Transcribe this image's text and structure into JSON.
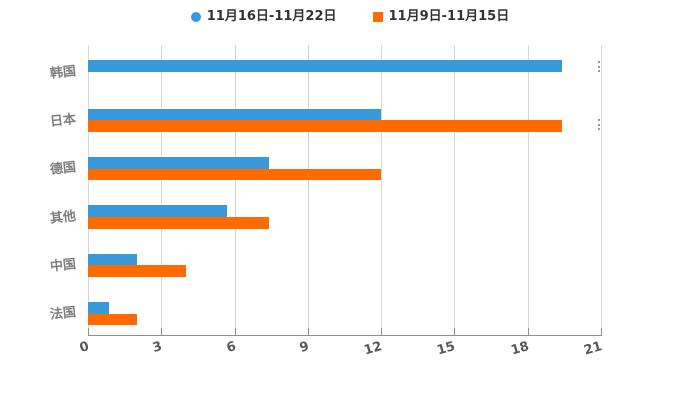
{
  "legend": {
    "items": [
      {
        "label": "11月16日-11月22日",
        "marker": "circle"
      },
      {
        "label": "11月9日-11月15日",
        "marker": "square"
      }
    ]
  },
  "chart_data": {
    "type": "bar",
    "orientation": "horizontal",
    "title": "",
    "xlabel": "",
    "ylabel": "",
    "categories": [
      "韩国",
      "日本",
      "德国",
      "其他",
      "中国",
      "法国"
    ],
    "series": [
      {
        "name": "11月16日-11月22日",
        "color": "#3A99D9",
        "marker": "circle",
        "values": [
          19.4,
          12.0,
          7.4,
          5.7,
          2.0,
          0.85
        ]
      },
      {
        "name": "11月9日-11月15日",
        "color": "#FF6B00",
        "marker": "square",
        "values": [
          0,
          19.4,
          12.0,
          7.4,
          4.0,
          2.0
        ]
      }
    ],
    "xlim": [
      0,
      21
    ],
    "xticks": [
      0,
      3,
      6,
      9,
      12,
      15,
      18,
      21
    ],
    "grid": "vertical",
    "legend_position": "top",
    "colors": {
      "grid": "#d6d6d6",
      "axis": "#8f8f8f",
      "tick_label": "#595959",
      "category_label": "#7e7e7e",
      "legend_text": "#333333",
      "background": "#ffffff"
    }
  }
}
